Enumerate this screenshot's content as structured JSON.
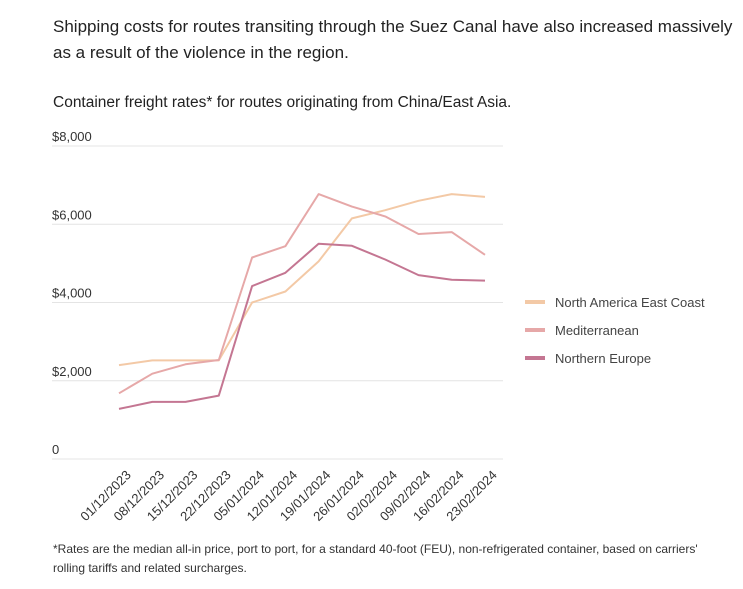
{
  "intro": "Shipping costs for routes transiting through the Suez Canal have also increased massively as a result of the violence in the region.",
  "subtitle": "Container freight rates* for routes originating from China/East Asia.",
  "footnote": "*Rates are the median all-in price, port to port, for a standard 40-foot (FEU), non-refrigerated container, based on carriers' rolling tariffs and related surcharges.",
  "chart_data": {
    "type": "line",
    "title": "Container freight rates* for routes originating from China/East Asia.",
    "xlabel": "",
    "ylabel": "",
    "ylim": [
      0,
      8000
    ],
    "y_ticks": [
      "$8,000",
      "$6,000",
      "$4,000",
      "$2,000",
      "0"
    ],
    "y_tick_values": [
      8000,
      6000,
      4000,
      2000,
      0
    ],
    "grid": true,
    "legend_position": "right",
    "categories": [
      "01/12/2023",
      "08/12/2023",
      "15/12/2023",
      "22/12/2023",
      "05/01/2024",
      "12/01/2024",
      "19/01/2024",
      "26/01/2024",
      "02/02/2024",
      "09/02/2024",
      "16/02/2024",
      "23/02/2024"
    ],
    "series": [
      {
        "name": "North America East Coast",
        "color": "#f3c9a6",
        "values": [
          2400,
          2520,
          2520,
          2520,
          4000,
          4280,
          5050,
          6150,
          6360,
          6600,
          6770,
          6700
        ]
      },
      {
        "name": "Mediterranean",
        "color": "#e6a8a8",
        "values": [
          1680,
          2180,
          2420,
          2530,
          5150,
          5440,
          6770,
          6450,
          6200,
          5750,
          5800,
          5220
        ]
      },
      {
        "name": "Northern Europe",
        "color": "#c47692",
        "values": [
          1280,
          1460,
          1460,
          1620,
          4420,
          4760,
          5500,
          5450,
          5100,
          4700,
          4580,
          4560
        ]
      }
    ]
  }
}
